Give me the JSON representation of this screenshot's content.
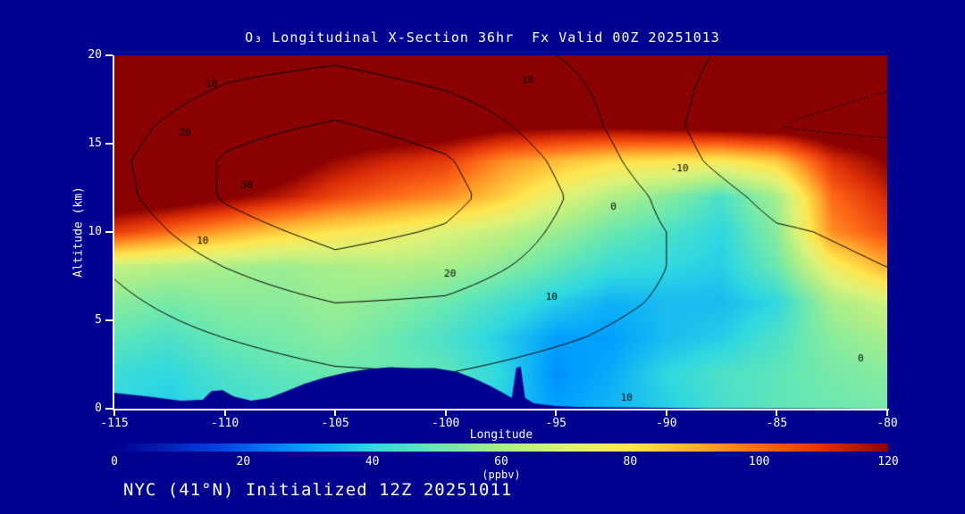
{
  "title": "O₃ Longitudinal X-Section 36hr  Fx Valid 00Z 20251013",
  "footer": "NYC (41°N) Initialized 12Z 20251011",
  "colors": {
    "background": "#000090",
    "axis": "#ffffff",
    "contour": "#000000",
    "text": "#ffffff"
  },
  "axes": {
    "x": {
      "label": "Longitude",
      "min": -115,
      "max": -80,
      "ticks": [
        -115,
        -110,
        -105,
        -100,
        -95,
        -90,
        -85,
        -80
      ]
    },
    "y": {
      "label": "Altitude (km)",
      "min": 0,
      "max": 20,
      "ticks": [
        0,
        5,
        10,
        15,
        20
      ]
    }
  },
  "colorbar": {
    "label": "(ppbv)",
    "min": 0,
    "max": 120,
    "ticks": [
      0,
      20,
      40,
      60,
      80,
      100,
      120
    ],
    "stops": [
      [
        0,
        "#000090"
      ],
      [
        16,
        "#0040e0"
      ],
      [
        30,
        "#00a0ff"
      ],
      [
        40,
        "#30d8e0"
      ],
      [
        50,
        "#6ae8b0"
      ],
      [
        60,
        "#a8ee8a"
      ],
      [
        70,
        "#dcf278"
      ],
      [
        80,
        "#ffe650"
      ],
      [
        90,
        "#ffb030"
      ],
      [
        100,
        "#ff6a18"
      ],
      [
        110,
        "#e03008"
      ],
      [
        120,
        "#8b0000"
      ]
    ]
  },
  "chart_data": {
    "type": "heatmap",
    "title": "O₃ Longitudinal X-Section 36hr Fx Valid 00Z 20251013",
    "xlabel": "Longitude",
    "ylabel": "Altitude (km)",
    "units": "ppbv",
    "xlim": [
      -115,
      -80
    ],
    "ylim": [
      0,
      20
    ],
    "x_longitudes": [
      -115,
      -112.5,
      -110,
      -107.5,
      -105,
      -102.5,
      -100,
      -97.5,
      -95,
      -92.5,
      -90,
      -87.5,
      -85,
      -82.5,
      -80
    ],
    "y_altitudes_km": [
      0,
      2,
      4,
      6,
      8,
      10,
      12,
      14,
      16,
      18,
      20
    ],
    "ozone_ppbv": [
      [
        40,
        38,
        42,
        45,
        45,
        45,
        44,
        38,
        30,
        34,
        38,
        44,
        48,
        50,
        52
      ],
      [
        42,
        40,
        45,
        48,
        50,
        50,
        48,
        40,
        28,
        32,
        40,
        45,
        48,
        52,
        55
      ],
      [
        48,
        45,
        50,
        52,
        55,
        50,
        45,
        38,
        30,
        30,
        35,
        38,
        45,
        55,
        60
      ],
      [
        55,
        52,
        55,
        55,
        58,
        55,
        50,
        44,
        38,
        33,
        35,
        35,
        40,
        60,
        68
      ],
      [
        65,
        62,
        60,
        58,
        60,
        62,
        60,
        55,
        48,
        42,
        40,
        38,
        50,
        75,
        90
      ],
      [
        108,
        100,
        92,
        85,
        80,
        76,
        70,
        65,
        58,
        50,
        45,
        40,
        55,
        95,
        105
      ],
      [
        130,
        128,
        122,
        115,
        106,
        100,
        95,
        85,
        72,
        62,
        55,
        45,
        60,
        100,
        112
      ],
      [
        138,
        135,
        132,
        128,
        118,
        112,
        108,
        95,
        88,
        82,
        80,
        78,
        85,
        110,
        120
      ],
      [
        140,
        140,
        138,
        135,
        132,
        130,
        128,
        124,
        122,
        122,
        124,
        126,
        128,
        130,
        132
      ],
      [
        140,
        140,
        140,
        140,
        140,
        140,
        138,
        136,
        135,
        135,
        136,
        137,
        138,
        139,
        140
      ],
      [
        140,
        140,
        140,
        140,
        140,
        140,
        140,
        140,
        140,
        140,
        140,
        140,
        140,
        140,
        140
      ]
    ],
    "overlay_contours": {
      "description": "black line contours overlaid on shading; negative levels dotted",
      "levels": [
        -10,
        0,
        10,
        20,
        30,
        40
      ],
      "negative_style": "dotted",
      "grid_lon": [
        -115,
        -110,
        -105,
        -100,
        -95,
        -90,
        -85,
        -80
      ],
      "grid_alt_km": [
        0,
        2,
        4,
        6,
        8,
        10,
        12,
        14,
        16,
        18,
        20
      ],
      "values": [
        [
          2,
          3,
          5,
          5,
          4,
          2,
          3,
          8
        ],
        [
          3,
          6,
          9,
          10,
          7,
          4,
          5,
          9
        ],
        [
          5,
          10,
          14,
          15,
          11,
          7,
          5,
          6
        ],
        [
          8,
          15,
          20,
          19,
          14,
          9,
          5,
          3
        ],
        [
          11,
          20,
          27,
          24,
          17,
          10,
          3,
          0
        ],
        [
          14,
          26,
          33,
          29,
          19,
          10,
          1,
          -2
        ],
        [
          17,
          31,
          39,
          33,
          21,
          8,
          -3,
          -5
        ],
        [
          18,
          31,
          37,
          31,
          19,
          4,
          -8,
          -8
        ],
        [
          16,
          27,
          31,
          26,
          16,
          2,
          -10,
          -11
        ],
        [
          13,
          21,
          25,
          20,
          13,
          3,
          -9,
          -10
        ],
        [
          11,
          16,
          18,
          14,
          10,
          4,
          -6,
          -7
        ]
      ]
    },
    "contour_labels": [
      {
        "text": "10",
        "lon": -110.6,
        "alt": 18.4
      },
      {
        "text": "10",
        "lon": -96.3,
        "alt": 18.6
      },
      {
        "text": "20",
        "lon": -111.8,
        "alt": 15.6
      },
      {
        "text": "30",
        "lon": -109.0,
        "alt": 12.6
      },
      {
        "text": "10",
        "lon": -111.0,
        "alt": 9.5
      },
      {
        "text": "20",
        "lon": -99.8,
        "alt": 7.6
      },
      {
        "text": "10",
        "lon": -95.2,
        "alt": 6.3
      },
      {
        "text": "0",
        "lon": -92.4,
        "alt": 11.4
      },
      {
        "text": "-10",
        "lon": -89.4,
        "alt": 13.6
      },
      {
        "text": "0",
        "lon": -81.2,
        "alt": 2.8
      },
      {
        "text": "10",
        "lon": -91.8,
        "alt": 0.6
      }
    ],
    "terrain_profile_lon_altkm": [
      [
        -115,
        0.9
      ],
      [
        -113.5,
        0.7
      ],
      [
        -112,
        0.45
      ],
      [
        -111,
        0.5
      ],
      [
        -110.6,
        1.0
      ],
      [
        -110.1,
        1.05
      ],
      [
        -109.6,
        0.7
      ],
      [
        -108.8,
        0.45
      ],
      [
        -108,
        0.6
      ],
      [
        -107.2,
        1.0
      ],
      [
        -106.4,
        1.4
      ],
      [
        -105.5,
        1.75
      ],
      [
        -104.5,
        2.05
      ],
      [
        -103.5,
        2.25
      ],
      [
        -102.5,
        2.35
      ],
      [
        -101.5,
        2.3
      ],
      [
        -100.5,
        2.3
      ],
      [
        -99.5,
        2.1
      ],
      [
        -98.7,
        1.7
      ],
      [
        -98,
        1.3
      ],
      [
        -97.4,
        0.9
      ],
      [
        -97,
        0.6
      ],
      [
        -96.8,
        2.3
      ],
      [
        -96.6,
        2.4
      ],
      [
        -96.4,
        0.6
      ],
      [
        -96,
        0.3
      ],
      [
        -95,
        0.15
      ],
      [
        -94,
        0.1
      ],
      [
        -92,
        0.08
      ],
      [
        -90,
        0.05
      ],
      [
        -88,
        0.03
      ],
      [
        -85,
        0.02
      ],
      [
        -82,
        0.01
      ],
      [
        -80,
        0.0
      ]
    ]
  }
}
